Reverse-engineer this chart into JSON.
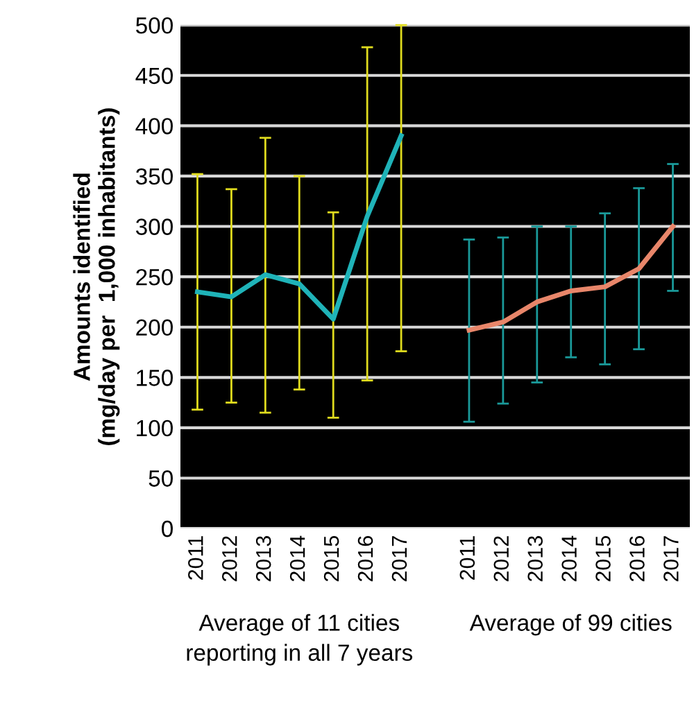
{
  "chart_data": {
    "type": "line",
    "ylabel": "Amounts identified\n(mg/day per  1,000 inhabitants)",
    "categories": [
      "2011",
      "2012",
      "2013",
      "2014",
      "2015",
      "2016",
      "2017",
      null,
      "2011",
      "2012",
      "2013",
      "2014",
      "2015",
      "2016",
      "2017"
    ],
    "series": [
      {
        "color": "#1fb3b8",
        "values": [
          235,
          230,
          252,
          243,
          208,
          310,
          390,
          null,
          null,
          null,
          null,
          null,
          null,
          null,
          null
        ],
        "errors": [
          [
            118,
            352
          ],
          [
            125,
            337
          ],
          [
            115,
            388
          ],
          [
            138,
            350
          ],
          [
            110,
            314
          ],
          [
            147,
            478
          ],
          [
            176,
            500
          ],
          null,
          null,
          null,
          null,
          null,
          null,
          null,
          null
        ]
      },
      {
        "color": "#e8866a",
        "values": [
          null,
          null,
          null,
          null,
          null,
          null,
          null,
          null,
          197,
          205,
          225,
          236,
          240,
          258,
          300
        ],
        "errors": [
          null,
          null,
          null,
          null,
          null,
          null,
          null,
          null,
          [
            106,
            287
          ],
          [
            124,
            289
          ],
          [
            145,
            300
          ],
          [
            170,
            300
          ],
          [
            163,
            313
          ],
          [
            178,
            338
          ],
          [
            236,
            362
          ]
        ]
      }
    ],
    "ylim": [
      0,
      500
    ],
    "yticks": [
      0,
      50,
      100,
      150,
      200,
      250,
      300,
      350,
      400,
      450,
      500
    ],
    "grid": "y",
    "marker": "none",
    "line_style": "solid",
    "annotations": [
      "Average of 11 cities\nreporting in all 7 years",
      "Average of 99 cities"
    ]
  }
}
